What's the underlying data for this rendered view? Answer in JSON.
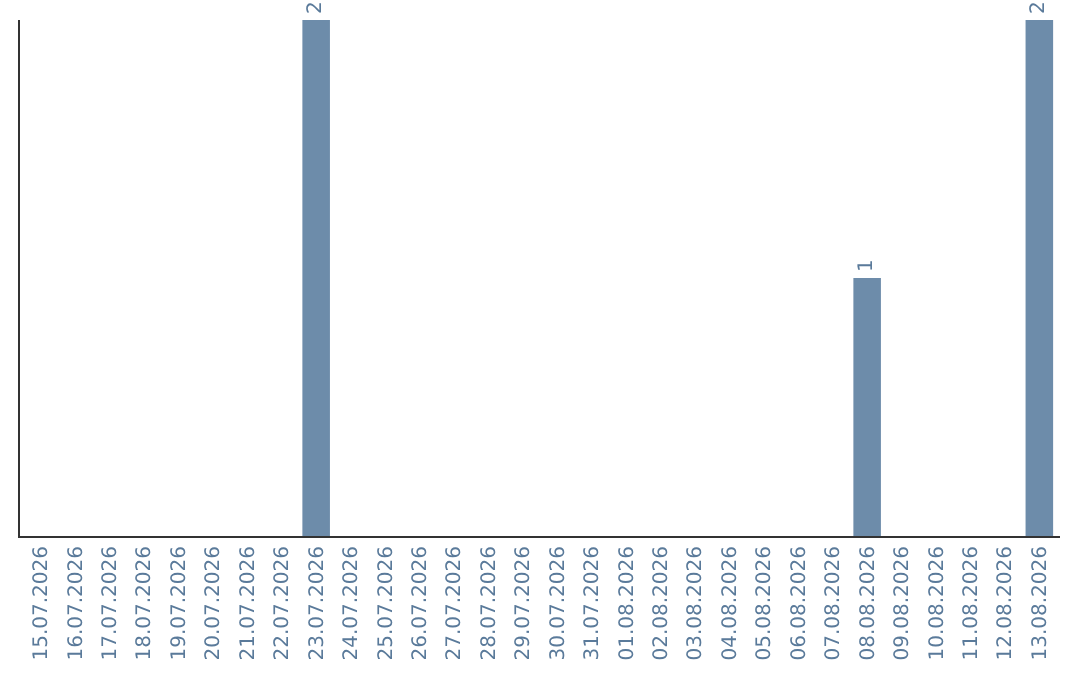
{
  "chart_data": {
    "type": "bar",
    "categories": [
      "15.07.2026",
      "16.07.2026",
      "17.07.2026",
      "18.07.2026",
      "19.07.2026",
      "20.07.2026",
      "21.07.2026",
      "22.07.2026",
      "23.07.2026",
      "24.07.2026",
      "25.07.2026",
      "26.07.2026",
      "27.07.2026",
      "28.07.2026",
      "29.07.2026",
      "30.07.2026",
      "31.07.2026",
      "01.08.2026",
      "02.08.2026",
      "03.08.2026",
      "04.08.2026",
      "05.08.2026",
      "06.08.2026",
      "07.08.2026",
      "08.08.2026",
      "09.08.2026",
      "10.08.2026",
      "11.08.2026",
      "12.08.2026",
      "13.08.2026"
    ],
    "values": [
      0,
      0,
      0,
      0,
      0,
      0,
      0,
      0,
      2,
      0,
      0,
      0,
      0,
      0,
      0,
      0,
      0,
      0,
      0,
      0,
      0,
      0,
      0,
      0,
      1,
      0,
      0,
      0,
      0,
      2
    ],
    "value_labels": [
      null,
      null,
      null,
      null,
      null,
      null,
      null,
      null,
      "2",
      null,
      null,
      null,
      null,
      null,
      null,
      null,
      null,
      null,
      null,
      null,
      null,
      null,
      null,
      null,
      "1",
      null,
      null,
      null,
      null,
      "2"
    ],
    "color": "#6d8caa",
    "ylim": [
      0,
      2
    ],
    "tick_labels": "x"
  }
}
